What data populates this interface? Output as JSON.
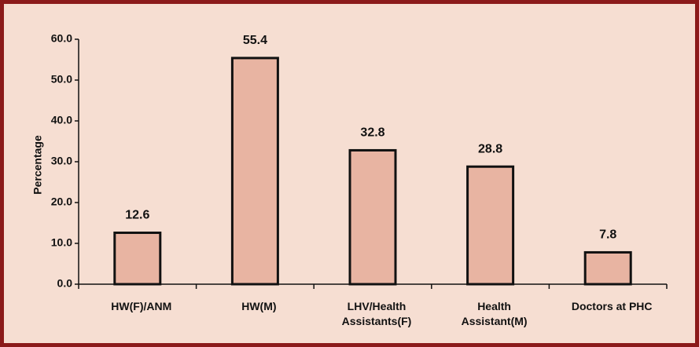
{
  "chart_data": {
    "type": "bar",
    "categories": [
      "HW(F)/ANM",
      "HW(M)",
      "LHV/Health Assistants(F)",
      "Health Assistant(M)",
      "Doctors at PHC"
    ],
    "values": [
      12.6,
      55.4,
      32.8,
      28.8,
      7.8
    ],
    "color": "#e8b4a2",
    "ylabel": "Percentage",
    "ylim": [
      0,
      60
    ],
    "yticks": [
      {
        "value": 0,
        "label": "0.0"
      },
      {
        "value": 10,
        "label": "10.0"
      },
      {
        "value": 20,
        "label": "20.0"
      },
      {
        "value": 30,
        "label": "30.0"
      },
      {
        "value": 40,
        "label": "40.0"
      },
      {
        "value": 50,
        "label": "50.0"
      },
      {
        "value": 60,
        "label": "60.0"
      }
    ],
    "grid": false
  }
}
